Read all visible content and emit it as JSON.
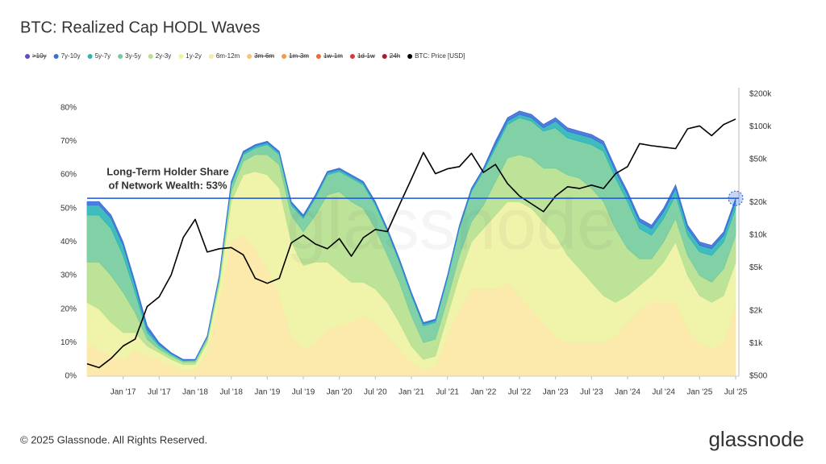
{
  "chart_data": {
    "type": "stacked-area-line",
    "title": "BTC: Realized Cap HODL Waves",
    "annotation": [
      "Long-Term Holder Share",
      "of Network Wealth: 53%"
    ],
    "hline": 53,
    "watermark": "glassnode",
    "footer": "© 2025 Glassnode. All Rights Reserved.",
    "logo": "glassnode",
    "categories": [
      null,
      null,
      null,
      "Jan '17",
      null,
      null,
      "Jul '17",
      null,
      null,
      "Jan '18",
      null,
      null,
      "Jul '18",
      null,
      null,
      "Jan '19",
      null,
      null,
      "Jul '19",
      null,
      null,
      "Jan '20",
      null,
      null,
      "Jul '20",
      null,
      null,
      "Jan '21",
      null,
      null,
      "Jul '21",
      null,
      null,
      "Jan '22",
      null,
      null,
      "Jul '22",
      null,
      null,
      "Jan '23",
      null,
      null,
      "Jul '23",
      null,
      null,
      "Jan '24",
      null,
      null,
      "Jul '24",
      null,
      null,
      "Jan '25",
      null,
      null,
      "Jul '25"
    ],
    "ylim": [
      0,
      84
    ],
    "yticks": [
      {
        "value": 0,
        "label": "0%"
      },
      {
        "value": 10,
        "label": "10%"
      },
      {
        "value": 20,
        "label": "20%"
      },
      {
        "value": 30,
        "label": "30%"
      },
      {
        "value": 40,
        "label": "40%"
      },
      {
        "value": 50,
        "label": "50%"
      },
      {
        "value": 60,
        "label": "60%"
      },
      {
        "value": 70,
        "label": "70%"
      },
      {
        "value": 80,
        "label": "80%"
      }
    ],
    "y2lim": [
      500,
      200000
    ],
    "y2_log": true,
    "y2ticks": [
      {
        "value": 500,
        "label": "$500"
      },
      {
        "value": 1000,
        "label": "$1k"
      },
      {
        "value": 2000,
        "label": "$2k"
      },
      {
        "value": 5000,
        "label": "$5k"
      },
      {
        "value": 10000,
        "label": "$10k"
      },
      {
        "value": 20000,
        "label": "$20k"
      },
      {
        "value": 50000,
        "label": "$50k"
      },
      {
        "value": 100000,
        "label": "$100k"
      },
      {
        "value": 200000,
        "label": "$200k"
      }
    ],
    "series": [
      {
        "name": ">10y",
        "color": "#5a4fc4",
        "visible": false
      },
      {
        "name": "7y-10y",
        "color": "#3b6fd8",
        "values": [
          1,
          1,
          1,
          1,
          1,
          1,
          0.5,
          0.2,
          0.2,
          0.1,
          0.2,
          0.2,
          0.4,
          0.4,
          0.4,
          0.4,
          0.4,
          0.4,
          0.4,
          0.4,
          0.4,
          0.4,
          0.4,
          0.4,
          0.4,
          0.4,
          0.4,
          0.4,
          0.4,
          0.4,
          0.4,
          0.4,
          0.4,
          0.4,
          1,
          1,
          1,
          1,
          1,
          1,
          1,
          1,
          1,
          1,
          1,
          1,
          1,
          1,
          1,
          1,
          1,
          1,
          1,
          1,
          1
        ]
      },
      {
        "name": "5y-7y",
        "color": "#2bb5b8",
        "values": [
          3,
          3,
          3,
          3,
          2,
          1,
          0.5,
          0.3,
          0.2,
          0.2,
          0.2,
          0.3,
          0.6,
          0.6,
          0.6,
          0.6,
          0.6,
          0.6,
          0.6,
          0.6,
          0.6,
          0.6,
          0.6,
          0.6,
          0.6,
          0.6,
          0.6,
          0.6,
          0.6,
          0.6,
          0.6,
          0.6,
          0.6,
          0.6,
          1,
          1,
          1,
          1,
          1,
          2,
          2,
          2,
          2,
          2,
          2,
          2,
          2,
          2,
          2,
          2,
          2,
          2,
          2,
          2,
          2
        ]
      },
      {
        "name": "3y-5y",
        "color": "#74cc9c",
        "values": [
          14,
          14,
          14,
          11,
          6,
          2,
          1,
          0.5,
          0.4,
          0.4,
          0.6,
          1,
          2,
          2,
          2,
          3,
          3,
          3,
          4,
          5,
          6,
          6,
          7,
          7,
          7,
          7,
          6,
          6,
          5,
          5,
          6,
          8,
          9,
          10,
          10,
          10,
          11,
          11,
          11,
          12,
          11,
          11,
          13,
          15,
          15,
          14,
          9,
          7,
          7,
          7,
          6,
          7,
          8,
          8,
          8
        ]
      },
      {
        "name": "2y-3y",
        "color": "#b6e08e",
        "values": [
          12,
          14,
          14,
          12,
          6,
          2,
          1,
          1,
          0.7,
          0.8,
          1,
          1.5,
          3,
          4,
          5,
          6,
          7,
          8,
          10,
          14,
          20,
          24,
          24,
          22,
          18,
          14,
          12,
          9,
          5,
          5,
          5,
          6,
          6,
          7,
          10,
          13,
          14,
          15,
          16,
          20,
          24,
          27,
          28,
          28,
          22,
          14,
          8,
          5,
          6,
          7,
          6,
          6,
          6,
          8,
          8
        ]
      },
      {
        "name": "1y-2y",
        "color": "#eef3a2",
        "values": [
          12,
          12,
          10,
          8,
          5,
          3,
          2,
          2,
          1.5,
          1.5,
          3,
          5,
          12,
          18,
          23,
          28,
          32,
          28,
          25,
          24,
          20,
          16,
          12,
          10,
          10,
          10,
          8,
          5,
          3,
          3,
          6,
          10,
          14,
          18,
          22,
          24,
          28,
          30,
          30,
          30,
          26,
          22,
          18,
          14,
          10,
          8,
          7,
          8,
          12,
          18,
          16,
          14,
          14,
          14,
          12
        ]
      },
      {
        "name": "6m-12m",
        "color": "#fbe8a3",
        "values": [
          10,
          8,
          6,
          5,
          8,
          6,
          5,
          3,
          2,
          2,
          7,
          22,
          40,
          42,
          38,
          32,
          24,
          12,
          8,
          10,
          14,
          15,
          16,
          18,
          16,
          12,
          8,
          4,
          2,
          3,
          12,
          20,
          26,
          26,
          26,
          28,
          24,
          20,
          16,
          12,
          10,
          10,
          10,
          10,
          12,
          16,
          20,
          22,
          22,
          22,
          14,
          10,
          8,
          10,
          22
        ]
      },
      {
        "name": "3m-6m",
        "color": "#f8c46c",
        "visible": false
      },
      {
        "name": "1m-3m",
        "color": "#f49a4f",
        "visible": false
      },
      {
        "name": "1w-1m",
        "color": "#ec6a3b",
        "visible": false
      },
      {
        "name": "1d-1w",
        "color": "#d8373d",
        "visible": false
      },
      {
        "name": "24h",
        "color": "#a51c3a",
        "visible": false
      },
      {
        "name": "BTC: Price [USD]",
        "color": "#000000",
        "axis": "y2",
        "values": [
          650,
          600,
          730,
          950,
          1100,
          2200,
          2700,
          4300,
          9500,
          14000,
          7000,
          7500,
          7700,
          6600,
          4000,
          3600,
          4000,
          8500,
          10000,
          8300,
          7500,
          9300,
          6400,
          9500,
          11300,
          10800,
          19000,
          33000,
          58000,
          37000,
          41000,
          43000,
          57000,
          38000,
          45000,
          30000,
          23000,
          19500,
          16500,
          23000,
          28000,
          27000,
          29000,
          27000,
          37000,
          43000,
          70000,
          67000,
          65000,
          63000,
          96000,
          102000,
          83000,
          105000,
          118000
        ]
      }
    ]
  }
}
